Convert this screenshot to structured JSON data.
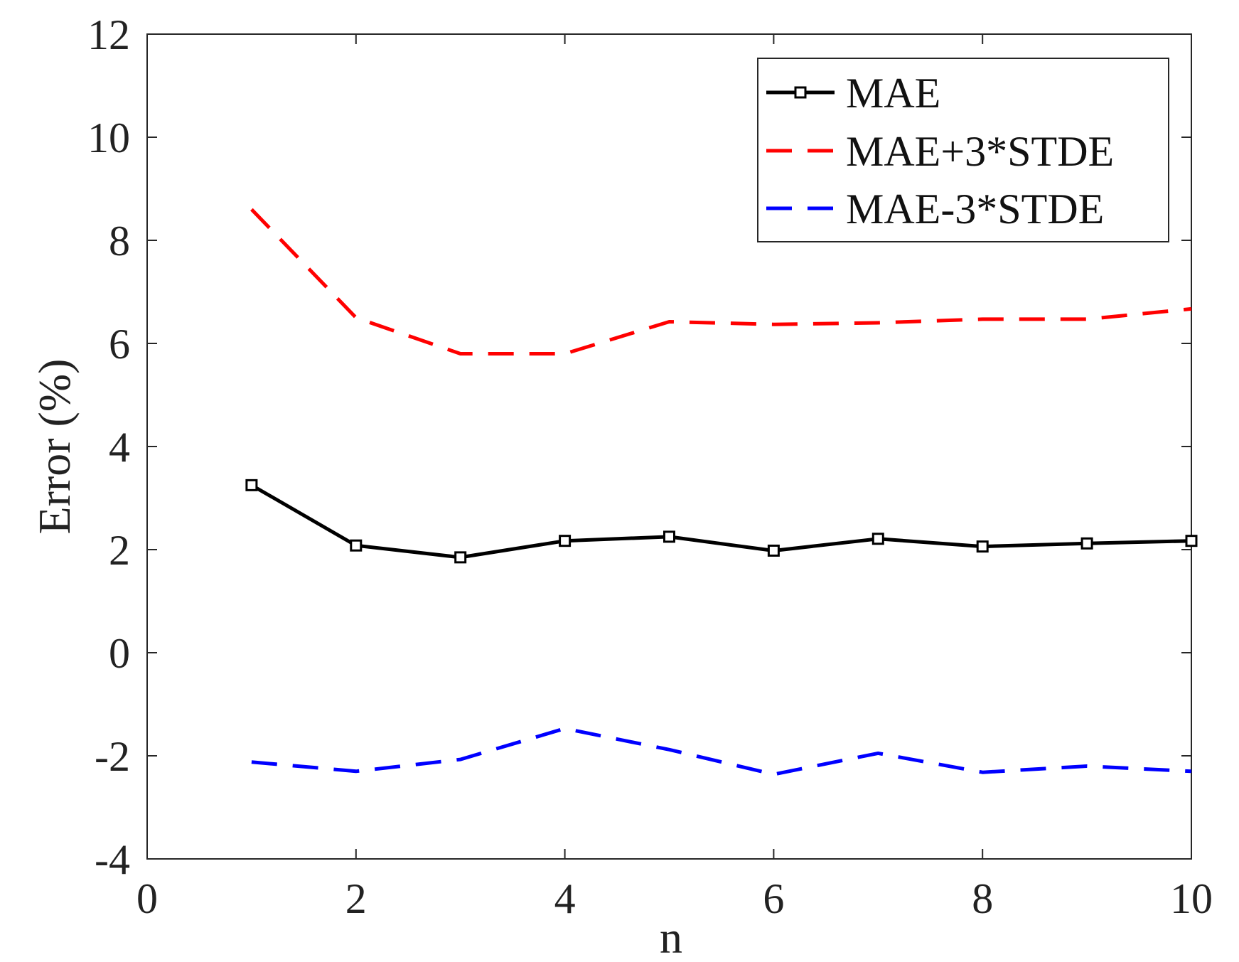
{
  "chart_data": {
    "type": "line",
    "title": "",
    "xlabel": "n",
    "ylabel": "Error (%)",
    "xlim": [
      0,
      10
    ],
    "ylim": [
      -4,
      12
    ],
    "x_ticks": [
      "0",
      "2",
      "4",
      "6",
      "8",
      "10"
    ],
    "y_ticks": [
      "-4",
      "-2",
      "0",
      "2",
      "4",
      "6",
      "8",
      "10",
      "12"
    ],
    "grid": false,
    "legend_position": "top-right",
    "x": [
      1,
      2,
      3,
      4,
      5,
      6,
      7,
      8,
      9,
      10
    ],
    "series": [
      {
        "name": "MAE",
        "color": "#000000",
        "line_style": "solid",
        "marker": "square",
        "values": [
          3.25,
          2.08,
          1.85,
          2.17,
          2.25,
          1.98,
          2.21,
          2.06,
          2.12,
          2.17
        ]
      },
      {
        "name": "MAE+3*STDE",
        "color": "#ff0000",
        "line_style": "dashed",
        "marker": "none",
        "values": [
          8.6,
          6.5,
          5.8,
          5.8,
          6.42,
          6.37,
          6.4,
          6.47,
          6.47,
          6.67
        ]
      },
      {
        "name": "MAE-3*STDE",
        "color": "#0000ff",
        "line_style": "dashed",
        "marker": "none",
        "values": [
          -2.12,
          -2.3,
          -2.07,
          -1.47,
          -1.88,
          -2.36,
          -1.95,
          -2.32,
          -2.2,
          -2.3
        ]
      }
    ]
  }
}
